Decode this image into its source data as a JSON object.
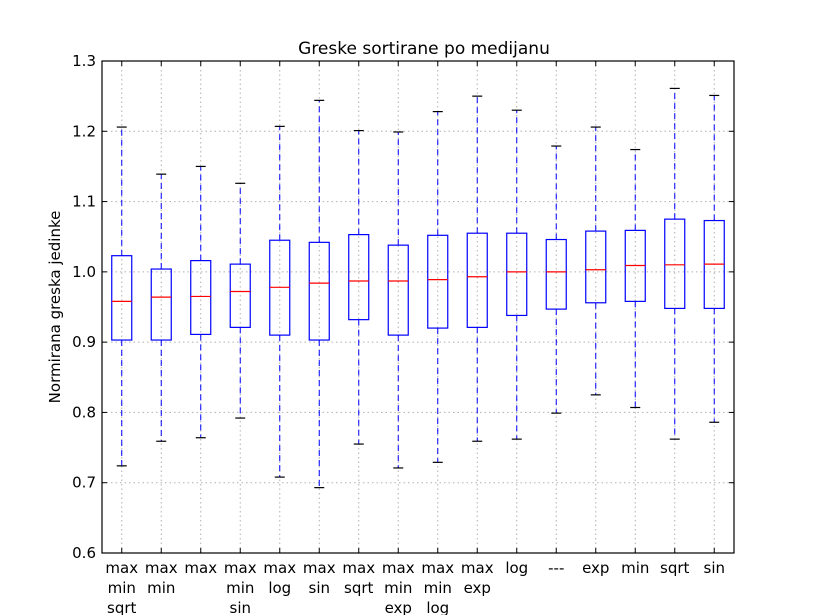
{
  "chart_data": {
    "type": "boxplot",
    "title": "Greske sortirane po medijanu",
    "xlabel": "",
    "ylabel": "Normirana greska jedinke",
    "ylim": [
      0.6,
      1.3
    ],
    "yticks": [
      "0.6",
      "0.7",
      "0.8",
      "0.9",
      "1.0",
      "1.1",
      "1.2",
      "1.3"
    ],
    "grid": true,
    "colors": {
      "box": "#0000ff",
      "whisker": "#0000ff",
      "median": "#ff0000",
      "cap": "#000000",
      "grid": "#b0b0b0"
    },
    "categories": [
      [
        "max",
        "min",
        "sqrt"
      ],
      [
        "max",
        "min"
      ],
      [
        "max"
      ],
      [
        "max",
        "min",
        "sin"
      ],
      [
        "max",
        "log"
      ],
      [
        "max",
        "sin"
      ],
      [
        "max",
        "sqrt"
      ],
      [
        "max",
        "min",
        "exp"
      ],
      [
        "max",
        "min",
        "log"
      ],
      [
        "max",
        "exp"
      ],
      [
        "log"
      ],
      [
        "---"
      ],
      [
        "exp"
      ],
      [
        "min"
      ],
      [
        "sqrt"
      ],
      [
        "sin"
      ]
    ],
    "boxes": [
      {
        "whislo": 0.724,
        "q1": 0.903,
        "med": 0.958,
        "q3": 1.023,
        "whishi": 1.206
      },
      {
        "whislo": 0.759,
        "q1": 0.903,
        "med": 0.964,
        "q3": 1.004,
        "whishi": 1.139
      },
      {
        "whislo": 0.764,
        "q1": 0.911,
        "med": 0.965,
        "q3": 1.016,
        "whishi": 1.15
      },
      {
        "whislo": 0.792,
        "q1": 0.921,
        "med": 0.972,
        "q3": 1.011,
        "whishi": 1.126
      },
      {
        "whislo": 0.708,
        "q1": 0.91,
        "med": 0.978,
        "q3": 1.045,
        "whishi": 1.207
      },
      {
        "whislo": 0.693,
        "q1": 0.903,
        "med": 0.984,
        "q3": 1.042,
        "whishi": 1.244
      },
      {
        "whislo": 0.755,
        "q1": 0.932,
        "med": 0.987,
        "q3": 1.053,
        "whishi": 1.201
      },
      {
        "whislo": 0.721,
        "q1": 0.91,
        "med": 0.987,
        "q3": 1.038,
        "whishi": 1.199
      },
      {
        "whislo": 0.729,
        "q1": 0.92,
        "med": 0.989,
        "q3": 1.052,
        "whishi": 1.228
      },
      {
        "whislo": 0.759,
        "q1": 0.921,
        "med": 0.993,
        "q3": 1.055,
        "whishi": 1.25
      },
      {
        "whislo": 0.762,
        "q1": 0.938,
        "med": 1.0,
        "q3": 1.055,
        "whishi": 1.23
      },
      {
        "whislo": 0.799,
        "q1": 0.947,
        "med": 1.0,
        "q3": 1.046,
        "whishi": 1.179
      },
      {
        "whislo": 0.825,
        "q1": 0.956,
        "med": 1.003,
        "q3": 1.058,
        "whishi": 1.206
      },
      {
        "whislo": 0.807,
        "q1": 0.958,
        "med": 1.009,
        "q3": 1.059,
        "whishi": 1.174
      },
      {
        "whislo": 0.762,
        "q1": 0.948,
        "med": 1.01,
        "q3": 1.075,
        "whishi": 1.261
      },
      {
        "whislo": 0.786,
        "q1": 0.948,
        "med": 1.011,
        "q3": 1.073,
        "whishi": 1.251
      }
    ]
  }
}
